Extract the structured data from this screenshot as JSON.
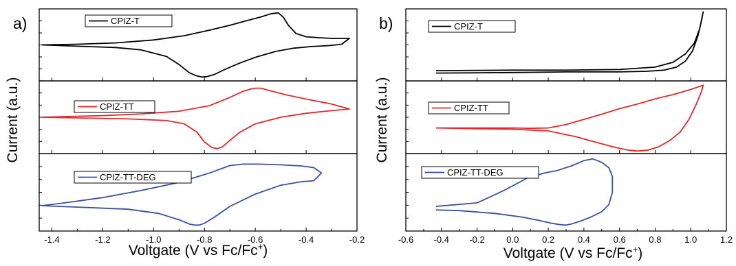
{
  "chart_data": [
    {
      "type": "line",
      "panel_label": "a)",
      "xlabel": "Voltgate (V vs Fc/Fc",
      "xlabel_sup": "+",
      "xlabel_close": ")",
      "ylabel": "Current (a.u.)",
      "xlim": [
        -1.45,
        -0.2
      ],
      "xticks": [
        -1.4,
        -1.2,
        -1.0,
        -0.8,
        -0.6,
        -0.4,
        -0.2
      ],
      "xtick_labels": [
        "-1.4",
        "-1.2",
        "-1.0",
        "-0.8",
        "-0.6",
        "-0.4",
        "-0.2"
      ],
      "subplots": [
        {
          "legend": "CPIZ-T",
          "color": "#000000",
          "ylim": [
            -1.1,
            1.1
          ],
          "series": [
            {
              "name": "CPIZ-T",
              "x": [
                -1.44,
                -1.3,
                -1.15,
                -1.05,
                -0.95,
                -0.9,
                -0.86,
                -0.83,
                -0.81,
                -0.79,
                -0.76,
                -0.72,
                -0.66,
                -0.6,
                -0.52,
                -0.45,
                -0.38,
                -0.31,
                -0.26,
                -0.23,
                -0.26,
                -0.3,
                -0.35,
                -0.4,
                -0.44,
                -0.47,
                -0.49,
                -0.51,
                -0.54,
                -0.58,
                -0.63,
                -0.7,
                -0.78,
                -0.88,
                -1.0,
                -1.15,
                -1.3,
                -1.44
              ],
              "y": [
                0.0,
                -0.04,
                -0.08,
                -0.15,
                -0.35,
                -0.6,
                -0.85,
                -0.95,
                -0.98,
                -0.97,
                -0.9,
                -0.75,
                -0.55,
                -0.38,
                -0.2,
                -0.1,
                -0.05,
                -0.02,
                0.02,
                0.2,
                0.2,
                0.2,
                0.22,
                0.25,
                0.35,
                0.6,
                0.85,
                0.98,
                0.95,
                0.85,
                0.75,
                0.6,
                0.45,
                0.28,
                0.15,
                0.06,
                0.02,
                0.0
              ]
            }
          ]
        },
        {
          "legend": "CPIZ-TT",
          "color": "#e8262a",
          "ylim": [
            -1.1,
            1.1
          ],
          "series": [
            {
              "name": "CPIZ-TT",
              "x": [
                -1.44,
                -1.3,
                -1.1,
                -0.95,
                -0.88,
                -0.83,
                -0.8,
                -0.77,
                -0.75,
                -0.73,
                -0.7,
                -0.66,
                -0.6,
                -0.5,
                -0.4,
                -0.3,
                -0.23,
                -0.3,
                -0.4,
                -0.48,
                -0.55,
                -0.58,
                -0.6,
                -0.62,
                -0.65,
                -0.7,
                -0.78,
                -0.9,
                -1.05,
                -1.2,
                -1.44
              ],
              "y": [
                0.0,
                -0.02,
                -0.05,
                -0.1,
                -0.2,
                -0.45,
                -0.75,
                -0.92,
                -0.95,
                -0.9,
                -0.7,
                -0.45,
                -0.2,
                0.0,
                0.12,
                0.2,
                0.25,
                0.4,
                0.55,
                0.68,
                0.82,
                0.88,
                0.88,
                0.85,
                0.78,
                0.6,
                0.35,
                0.18,
                0.1,
                0.05,
                0.0
              ]
            }
          ]
        },
        {
          "legend": "CPIZ-TT-DEG",
          "color": "#3c4ea2",
          "ylim": [
            -1.1,
            1.1
          ],
          "series": [
            {
              "name": "CPIZ-TT-DEG",
              "x": [
                -1.44,
                -1.3,
                -1.1,
                -0.98,
                -0.9,
                -0.86,
                -0.84,
                -0.82,
                -0.8,
                -0.76,
                -0.7,
                -0.6,
                -0.5,
                -0.42,
                -0.37,
                -0.34,
                -0.37,
                -0.42,
                -0.5,
                -0.58,
                -0.62,
                -0.65,
                -0.7,
                -0.78,
                -0.9,
                -1.05,
                -1.2,
                -1.35,
                -1.44
              ],
              "y": [
                -0.38,
                -0.42,
                -0.48,
                -0.6,
                -0.78,
                -0.9,
                -0.93,
                -0.93,
                -0.88,
                -0.7,
                -0.4,
                -0.05,
                0.2,
                0.3,
                0.33,
                0.55,
                0.7,
                0.75,
                0.78,
                0.8,
                0.8,
                0.8,
                0.76,
                0.55,
                0.28,
                0.05,
                -0.15,
                -0.3,
                -0.38
              ]
            }
          ]
        }
      ]
    },
    {
      "type": "line",
      "panel_label": "b)",
      "xlabel": "Voltgate (V vs Fc/Fc",
      "xlabel_sup": "+",
      "xlabel_close": ")",
      "ylabel": "Current (a.u.)",
      "xlim": [
        -0.6,
        1.2
      ],
      "xticks": [
        -0.6,
        -0.4,
        -0.2,
        0.0,
        0.2,
        0.4,
        0.6,
        0.8,
        1.0,
        1.2
      ],
      "xtick_labels": [
        "-0.6",
        "-0.4",
        "-0.2",
        "0.0",
        "0.2",
        "0.4",
        "0.6",
        "0.8",
        "1.0",
        "1.2"
      ],
      "subplots": [
        {
          "legend": "CPIZ-T",
          "color": "#000000",
          "ylim": [
            -0.15,
            1.05
          ],
          "series": [
            {
              "name": "CPIZ-T",
              "x": [
                -0.43,
                0.0,
                0.3,
                0.6,
                0.75,
                0.85,
                0.92,
                0.97,
                1.01,
                1.04,
                1.06,
                1.07,
                1.05,
                1.02,
                0.97,
                0.9,
                0.8,
                0.6,
                0.3,
                0.0,
                -0.43
              ],
              "y": [
                -0.02,
                -0.01,
                0.0,
                0.0,
                0.01,
                0.03,
                0.08,
                0.18,
                0.35,
                0.6,
                0.85,
                1.0,
                0.72,
                0.48,
                0.3,
                0.16,
                0.08,
                0.04,
                0.03,
                0.03,
                0.02
              ]
            }
          ]
        },
        {
          "legend": "CPIZ-TT",
          "color": "#e8262a",
          "ylim": [
            -0.6,
            1.1
          ],
          "series": [
            {
              "name": "CPIZ-TT",
              "x": [
                -0.43,
                -0.2,
                0.0,
                0.2,
                0.35,
                0.48,
                0.58,
                0.65,
                0.7,
                0.76,
                0.82,
                0.88,
                0.94,
                0.99,
                1.03,
                1.06,
                1.07,
                1.0,
                0.9,
                0.8,
                0.7,
                0.6,
                0.5,
                0.4,
                0.3,
                0.2,
                0.1,
                0.0,
                -0.2,
                -0.43
              ],
              "y": [
                0.0,
                -0.02,
                -0.03,
                -0.07,
                -0.2,
                -0.35,
                -0.46,
                -0.52,
                -0.54,
                -0.52,
                -0.44,
                -0.3,
                -0.1,
                0.2,
                0.55,
                0.85,
                1.0,
                0.9,
                0.78,
                0.68,
                0.56,
                0.45,
                0.32,
                0.2,
                0.08,
                0.0,
                -0.01,
                0.0,
                0.0,
                0.0
              ]
            }
          ]
        },
        {
          "legend": "CPIZ-TT-DEG",
          "color": "#3c4ea2",
          "ylim": [
            -1.1,
            1.1
          ],
          "series": [
            {
              "name": "CPIZ-TT-DEG",
              "x": [
                -0.43,
                -0.3,
                -0.1,
                0.05,
                0.15,
                0.22,
                0.27,
                0.3,
                0.33,
                0.38,
                0.44,
                0.5,
                0.54,
                0.56,
                0.56,
                0.54,
                0.5,
                0.45,
                0.4,
                0.33,
                0.25,
                0.18,
                0.08,
                -0.05,
                -0.2,
                -0.43
              ],
              "y": [
                -0.5,
                -0.52,
                -0.6,
                -0.7,
                -0.8,
                -0.88,
                -0.92,
                -0.93,
                -0.9,
                -0.82,
                -0.7,
                -0.55,
                -0.35,
                0.0,
                0.45,
                0.7,
                0.85,
                0.95,
                0.9,
                0.75,
                0.62,
                0.55,
                0.4,
                0.05,
                -0.3,
                -0.4
              ]
            }
          ]
        }
      ]
    }
  ]
}
